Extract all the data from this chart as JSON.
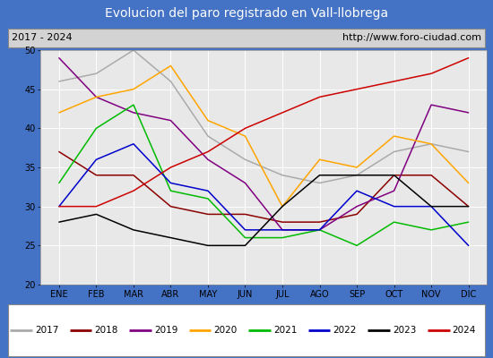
{
  "title": "Evolucion del paro registrado en Vall-llobrega",
  "subtitle_left": "2017 - 2024",
  "subtitle_right": "http://www.foro-ciudad.com",
  "months": [
    "ENE",
    "FEB",
    "MAR",
    "ABR",
    "MAY",
    "JUN",
    "JUL",
    "AGO",
    "SEP",
    "OCT",
    "NOV",
    "DIC"
  ],
  "ylim": [
    20,
    50
  ],
  "yticks": [
    20,
    25,
    30,
    35,
    40,
    45,
    50
  ],
  "series_colors": {
    "2017": "#aaaaaa",
    "2018": "#8b0000",
    "2019": "#800080",
    "2020": "#ffa500",
    "2021": "#00bb00",
    "2022": "#0000cc",
    "2023": "#000000",
    "2024": "#cc0000"
  },
  "series_data": {
    "2017": [
      46,
      47,
      50,
      46,
      39,
      36,
      34,
      33,
      34,
      37,
      38,
      37
    ],
    "2018": [
      37,
      34,
      34,
      30,
      29,
      29,
      28,
      28,
      29,
      34,
      34,
      30
    ],
    "2019": [
      49,
      44,
      42,
      41,
      36,
      33,
      27,
      27,
      30,
      32,
      43,
      42
    ],
    "2020": [
      42,
      44,
      45,
      48,
      41,
      39,
      30,
      36,
      35,
      39,
      38,
      33
    ],
    "2021": [
      33,
      40,
      43,
      32,
      31,
      26,
      26,
      27,
      25,
      28,
      27,
      28
    ],
    "2022": [
      30,
      36,
      38,
      33,
      32,
      27,
      27,
      27,
      32,
      30,
      30,
      25
    ],
    "2023": [
      28,
      29,
      27,
      26,
      25,
      25,
      30,
      34,
      34,
      34,
      30,
      30
    ],
    "2024": [
      30,
      30,
      32,
      35,
      37,
      40,
      42,
      44,
      45,
      46,
      47,
      49
    ]
  },
  "series_order": [
    "2017",
    "2018",
    "2019",
    "2020",
    "2021",
    "2022",
    "2023",
    "2024"
  ],
  "title_bg": "#4472c4",
  "title_fg": "#ffffff",
  "subtitle_bg": "#d3d3d3",
  "plot_bg": "#e8e8e8",
  "legend_bg": "#ffffff",
  "outer_bg": "#4472c4",
  "title_fontsize": 10,
  "subtitle_fontsize": 8,
  "tick_fontsize": 7,
  "legend_fontsize": 7.5
}
